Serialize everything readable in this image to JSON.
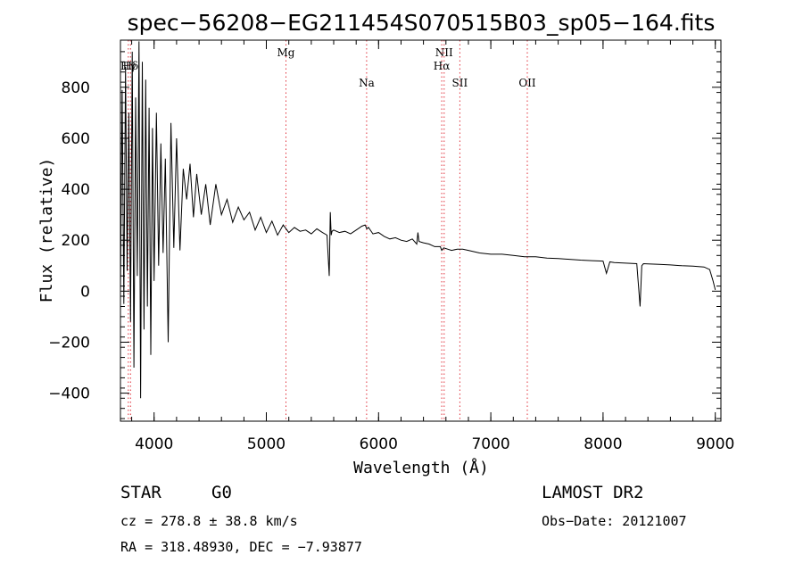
{
  "chart_data": {
    "type": "line",
    "title": "spec−56208−EG211454S070515B03_sp05−164.fits",
    "xlabel": "Wavelength (Å)",
    "ylabel": "Flux (relative)",
    "xlim": [
      3700,
      9050
    ],
    "ylim": [
      -510,
      985
    ],
    "x_ticks": [
      4000,
      5000,
      6000,
      7000,
      8000,
      9000
    ],
    "y_ticks": [
      -400,
      -200,
      0,
      200,
      400,
      600,
      800
    ],
    "grid": false,
    "series": [
      {
        "x": [
          3700,
          3715,
          3730,
          3745,
          3760,
          3775,
          3790,
          3805,
          3820,
          3835,
          3850,
          3865,
          3880,
          3895,
          3910,
          3925,
          3940,
          3955,
          3970,
          3985,
          4000,
          4020,
          4040,
          4060,
          4080,
          4100,
          4125,
          4150,
          4175,
          4200,
          4230,
          4260,
          4290,
          4320,
          4350,
          4380,
          4420,
          4460,
          4500,
          4550,
          4600,
          4650,
          4700,
          4750,
          4800,
          4850,
          4900,
          4950,
          5000,
          5050,
          5100,
          5150,
          5200,
          5250,
          5300,
          5350,
          5400,
          5450,
          5500,
          5540,
          5560,
          5570,
          5578,
          5585,
          5600,
          5650,
          5700,
          5750,
          5800,
          5850,
          5880,
          5895,
          5910,
          5950,
          6000,
          6050,
          6100,
          6150,
          6200,
          6250,
          6300,
          6340,
          6350,
          6360,
          6400,
          6450,
          6500,
          6550,
          6563,
          6580,
          6650,
          6700,
          6750,
          6800,
          6900,
          7000,
          7100,
          7200,
          7300,
          7400,
          7500,
          7600,
          7700,
          7800,
          7900,
          8000,
          8030,
          8060,
          8100,
          8200,
          8300,
          8330,
          8345,
          8360,
          8400,
          8500,
          8600,
          8700,
          8800,
          8900,
          8950,
          8980,
          9000
        ],
        "y": [
          0,
          790,
          -50,
          880,
          80,
          700,
          -120,
          940,
          -300,
          760,
          60,
          980,
          -420,
          900,
          -150,
          830,
          -60,
          720,
          -250,
          640,
          40,
          700,
          100,
          580,
          150,
          520,
          -200,
          660,
          170,
          600,
          160,
          480,
          360,
          500,
          290,
          460,
          300,
          420,
          260,
          420,
          300,
          360,
          270,
          330,
          280,
          310,
          240,
          290,
          230,
          275,
          220,
          260,
          230,
          250,
          235,
          240,
          225,
          245,
          230,
          220,
          60,
          310,
          220,
          235,
          240,
          230,
          235,
          225,
          240,
          255,
          260,
          245,
          250,
          225,
          230,
          215,
          205,
          210,
          200,
          195,
          205,
          185,
          230,
          195,
          190,
          185,
          175,
          175,
          160,
          170,
          160,
          165,
          165,
          160,
          150,
          145,
          145,
          140,
          135,
          135,
          130,
          128,
          125,
          122,
          120,
          118,
          70,
          115,
          112,
          110,
          108,
          -60,
          100,
          108,
          107,
          105,
          103,
          100,
          98,
          95,
          85,
          40,
          5
        ]
      }
    ],
    "line_markers": [
      {
        "label": "Mg",
        "wavelength": 5175
      },
      {
        "label": "Na",
        "wavelength": 5893
      },
      {
        "label": "NII",
        "wavelength": 6584
      },
      {
        "label": "Hα",
        "wavelength": 6563
      },
      {
        "label": "SII",
        "wavelength": 6724
      },
      {
        "label": "OII",
        "wavelength": 7325
      },
      {
        "label": "Hδ",
        "wavelength": 3790
      },
      {
        "label": "Hγ",
        "wavelength": 3770
      }
    ]
  },
  "info": {
    "class_label": "STAR",
    "subclass": "G0",
    "survey": "LAMOST DR2",
    "cz_text": "cz = 278.8 ± 38.8 km/s",
    "obs_date_text": "Obs−Date: 20121007",
    "radec_text": "RA = 318.48930, DEC =  −7.93877"
  },
  "colors": {
    "spectrum": "#000000",
    "marker_line": "#e0303a",
    "text": "#000000"
  }
}
